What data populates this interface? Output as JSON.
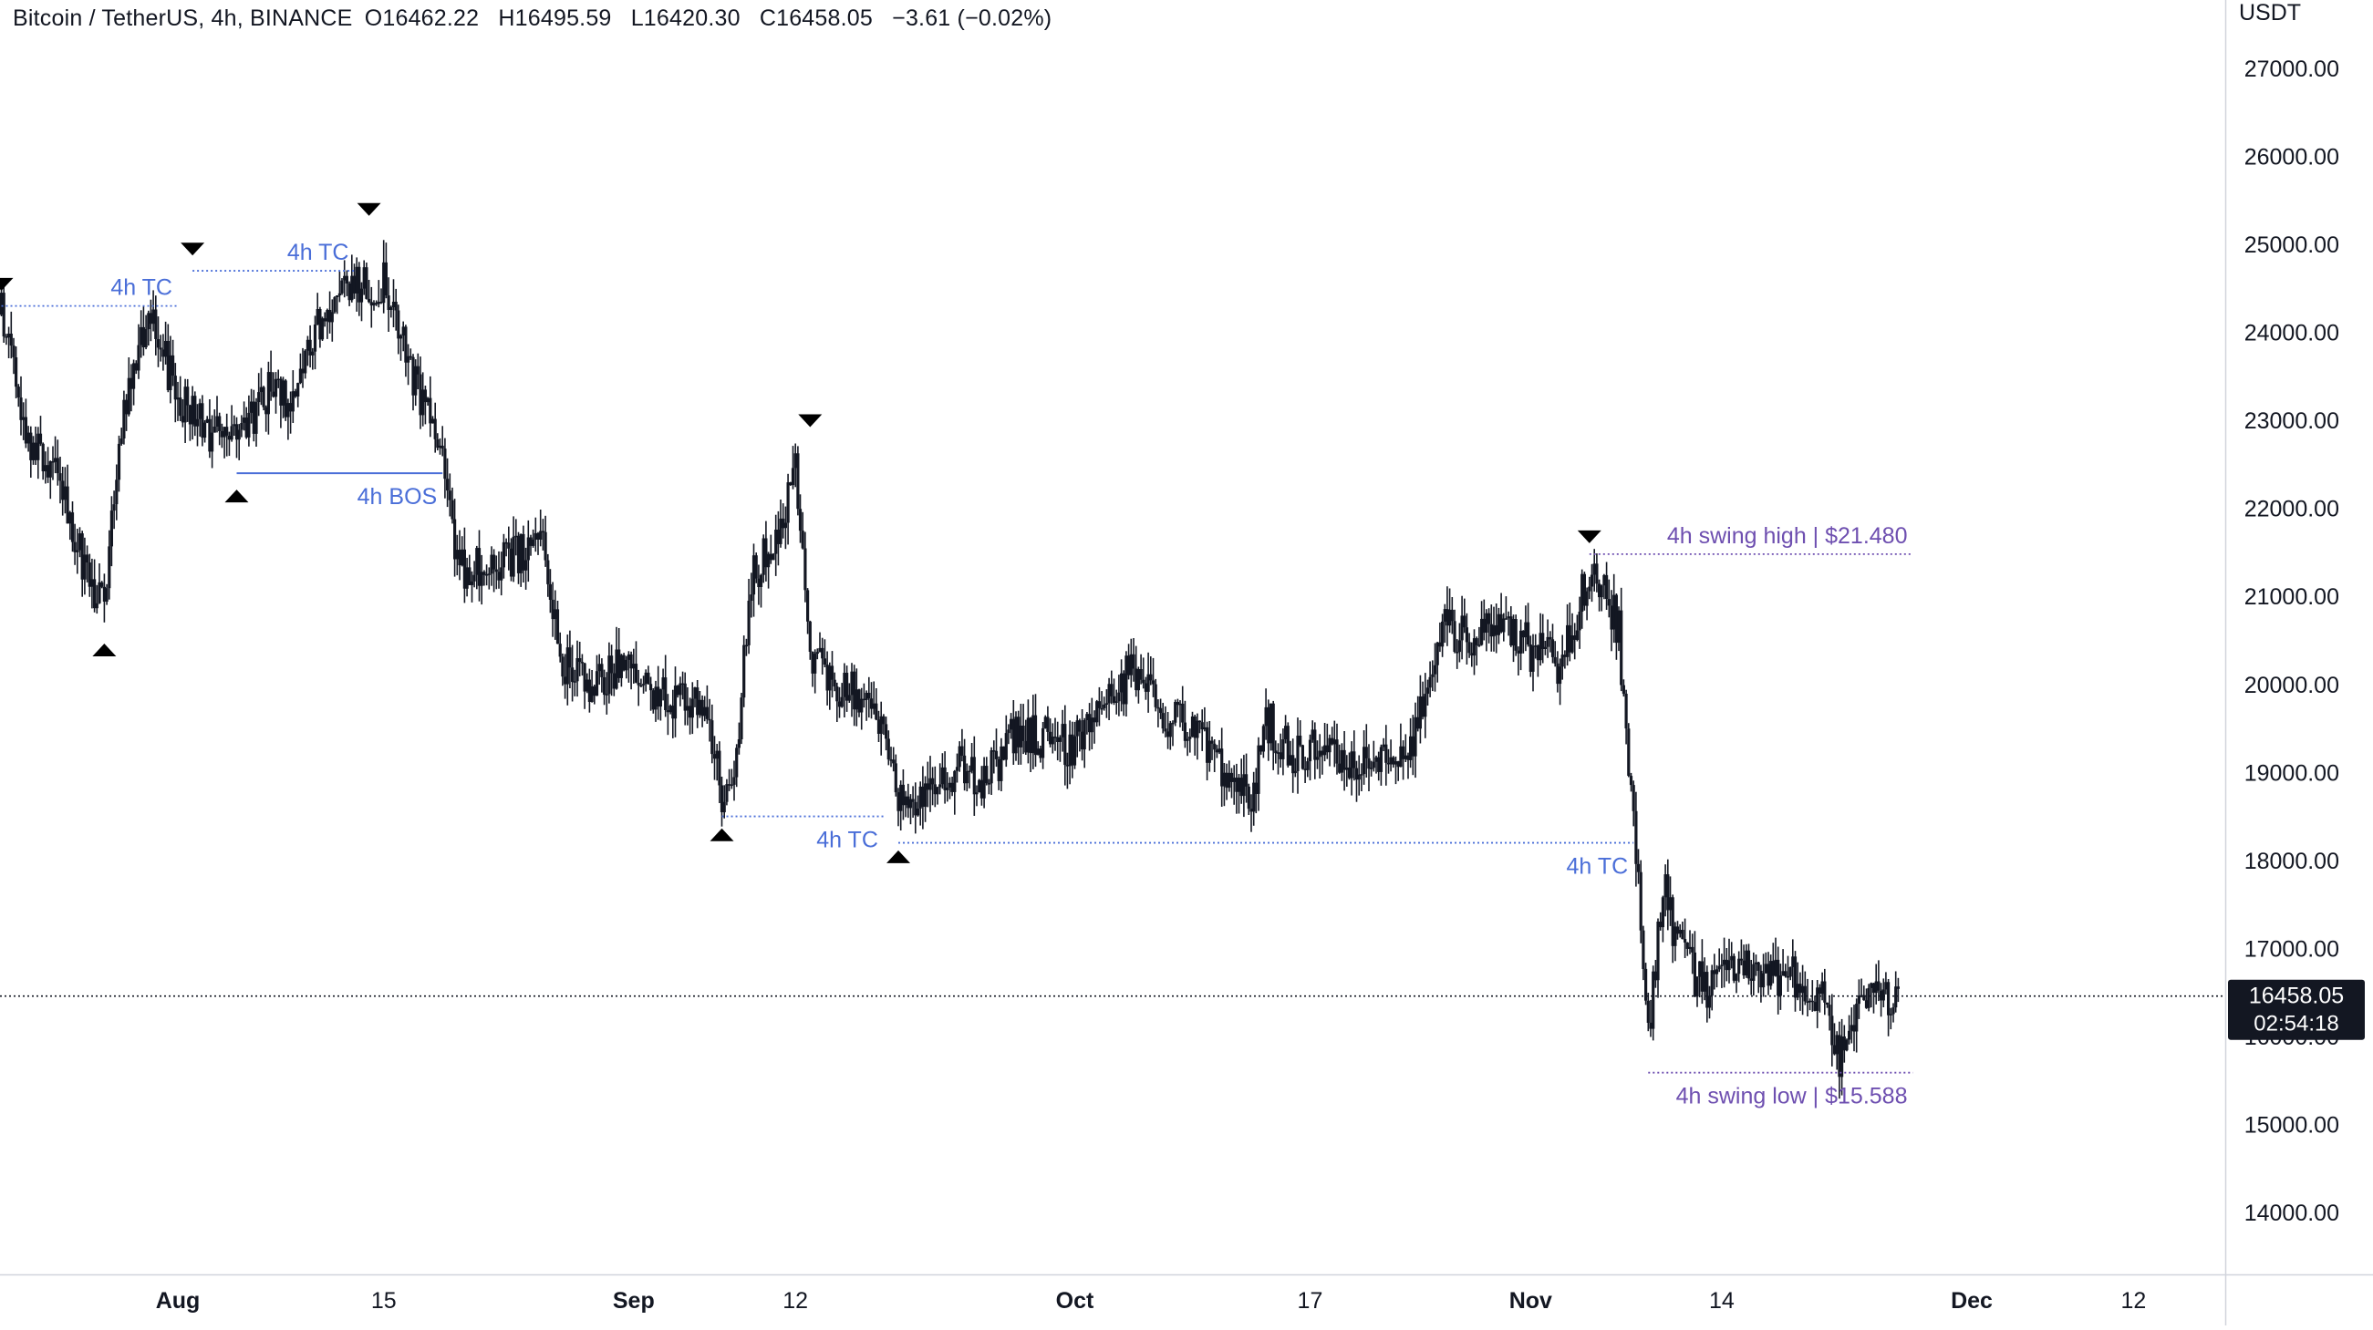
{
  "header": {
    "symbol": "Bitcoin / TetherUS, 4h, BINANCE",
    "open": "O16462.22",
    "high": "H16495.59",
    "low": "L16420.30",
    "close": "C16458.05",
    "change": "−3.61 (−0.02%)"
  },
  "price_scale": {
    "currency": "USDT",
    "last_price": "16458.05",
    "countdown": "02:54:18"
  },
  "colors": {
    "candle": "#131722",
    "marker": "#000000",
    "tc_label": "#4a6ed8",
    "swing_label": "#6e4fb0",
    "axis_text": "#131722",
    "price_tag_bg": "#131722",
    "price_tag_text": "#ffffff"
  },
  "chart_data": {
    "type": "candlestick",
    "title": "Bitcoin / TetherUS, 4h, BINANCE",
    "interval": "4h",
    "y_axis_labels": [
      "27000.00",
      "26000.00",
      "25000.00",
      "24000.00",
      "23000.00",
      "22000.00",
      "21000.00",
      "20000.00",
      "19000.00",
      "18000.00",
      "17000.00",
      "16000.00",
      "15000.00",
      "14000.00"
    ],
    "y_unit": "USDT",
    "x_tick_labels": [
      {
        "label": "Aug",
        "date": "2022-08-01"
      },
      {
        "label": "15",
        "date": "2022-08-15"
      },
      {
        "label": "Sep",
        "date": "2022-09-01"
      },
      {
        "label": "12",
        "date": "2022-09-12"
      },
      {
        "label": "Oct",
        "date": "2022-10-01"
      },
      {
        "label": "17",
        "date": "2022-10-17"
      },
      {
        "label": "Nov",
        "date": "2022-11-01"
      },
      {
        "label": "14",
        "date": "2022-11-14"
      },
      {
        "label": "Dec",
        "date": "2022-12-01"
      },
      {
        "label": "12",
        "date": "2022-12-12"
      }
    ],
    "close_path": [
      {
        "date": "2022-07-20",
        "price": 24200
      },
      {
        "date": "2022-07-22",
        "price": 22700
      },
      {
        "date": "2022-07-24",
        "price": 22400
      },
      {
        "date": "2022-07-26",
        "price": 21100
      },
      {
        "date": "2022-07-27",
        "price": 20800
      },
      {
        "date": "2022-07-28",
        "price": 22800
      },
      {
        "date": "2022-07-30",
        "price": 24200
      },
      {
        "date": "2022-08-01",
        "price": 23300
      },
      {
        "date": "2022-08-03",
        "price": 22900
      },
      {
        "date": "2022-08-05",
        "price": 22700
      },
      {
        "date": "2022-08-07",
        "price": 23300
      },
      {
        "date": "2022-08-09",
        "price": 23200
      },
      {
        "date": "2022-08-11",
        "price": 24300
      },
      {
        "date": "2022-08-13",
        "price": 24500
      },
      {
        "date": "2022-08-15",
        "price": 24600
      },
      {
        "date": "2022-08-17",
        "price": 23500
      },
      {
        "date": "2022-08-19",
        "price": 22700
      },
      {
        "date": "2022-08-20",
        "price": 21300
      },
      {
        "date": "2022-08-22",
        "price": 21300
      },
      {
        "date": "2022-08-24",
        "price": 21500
      },
      {
        "date": "2022-08-26",
        "price": 21600
      },
      {
        "date": "2022-08-27",
        "price": 20300
      },
      {
        "date": "2022-08-29",
        "price": 20000
      },
      {
        "date": "2022-08-31",
        "price": 20200
      },
      {
        "date": "2022-09-02",
        "price": 20000
      },
      {
        "date": "2022-09-04",
        "price": 19800
      },
      {
        "date": "2022-09-06",
        "price": 19800
      },
      {
        "date": "2022-09-07",
        "price": 18700
      },
      {
        "date": "2022-09-08",
        "price": 19200
      },
      {
        "date": "2022-09-09",
        "price": 21200
      },
      {
        "date": "2022-09-11",
        "price": 21700
      },
      {
        "date": "2022-09-12",
        "price": 22600
      },
      {
        "date": "2022-09-13",
        "price": 20300
      },
      {
        "date": "2022-09-15",
        "price": 19900
      },
      {
        "date": "2022-09-17",
        "price": 19900
      },
      {
        "date": "2022-09-19",
        "price": 18700
      },
      {
        "date": "2022-09-21",
        "price": 18700
      },
      {
        "date": "2022-09-23",
        "price": 19100
      },
      {
        "date": "2022-09-25",
        "price": 18900
      },
      {
        "date": "2022-09-27",
        "price": 19500
      },
      {
        "date": "2022-09-29",
        "price": 19400
      },
      {
        "date": "2022-10-01",
        "price": 19300
      },
      {
        "date": "2022-10-03",
        "price": 19700
      },
      {
        "date": "2022-10-05",
        "price": 20200
      },
      {
        "date": "2022-10-07",
        "price": 19700
      },
      {
        "date": "2022-10-09",
        "price": 19400
      },
      {
        "date": "2022-10-11",
        "price": 19100
      },
      {
        "date": "2022-10-13",
        "price": 18700
      },
      {
        "date": "2022-10-14",
        "price": 19600
      },
      {
        "date": "2022-10-16",
        "price": 19200
      },
      {
        "date": "2022-10-18",
        "price": 19400
      },
      {
        "date": "2022-10-20",
        "price": 19100
      },
      {
        "date": "2022-10-22",
        "price": 19200
      },
      {
        "date": "2022-10-24",
        "price": 19300
      },
      {
        "date": "2022-10-25",
        "price": 20000
      },
      {
        "date": "2022-10-26",
        "price": 20700
      },
      {
        "date": "2022-10-28",
        "price": 20500
      },
      {
        "date": "2022-10-30",
        "price": 20700
      },
      {
        "date": "2022-11-01",
        "price": 20400
      },
      {
        "date": "2022-11-03",
        "price": 20200
      },
      {
        "date": "2022-11-05",
        "price": 21300
      },
      {
        "date": "2022-11-06",
        "price": 21100
      },
      {
        "date": "2022-11-07",
        "price": 20600
      },
      {
        "date": "2022-11-08",
        "price": 18500
      },
      {
        "date": "2022-11-09",
        "price": 16000
      },
      {
        "date": "2022-11-10",
        "price": 17700
      },
      {
        "date": "2022-11-11",
        "price": 17000
      },
      {
        "date": "2022-11-13",
        "price": 16500
      },
      {
        "date": "2022-11-15",
        "price": 16900
      },
      {
        "date": "2022-11-17",
        "price": 16600
      },
      {
        "date": "2022-11-19",
        "price": 16700
      },
      {
        "date": "2022-11-21",
        "price": 16400
      },
      {
        "date": "2022-11-22",
        "price": 15700
      },
      {
        "date": "2022-11-23",
        "price": 16200
      },
      {
        "date": "2022-11-25",
        "price": 16500
      },
      {
        "date": "2022-11-26",
        "price": 16458
      }
    ],
    "swing_markers": [
      {
        "date": "2022-07-20",
        "price": 24350,
        "dir": "down"
      },
      {
        "date": "2022-07-27",
        "price": 20650,
        "dir": "up"
      },
      {
        "date": "2022-08-02",
        "price": 24750,
        "dir": "down"
      },
      {
        "date": "2022-08-05",
        "price": 22400,
        "dir": "up"
      },
      {
        "date": "2022-08-14",
        "price": 25200,
        "dir": "down"
      },
      {
        "date": "2022-09-07",
        "price": 18550,
        "dir": "up"
      },
      {
        "date": "2022-09-13",
        "price": 22800,
        "dir": "down"
      },
      {
        "date": "2022-09-19",
        "price": 18300,
        "dir": "up"
      },
      {
        "date": "2022-11-05",
        "price": 21480,
        "dir": "down"
      }
    ],
    "annotations": [
      {
        "label": "4h TC",
        "price": 24300,
        "from": "2022-07-20",
        "to": "2022-08-01",
        "style": "dotted",
        "label_pos": "above"
      },
      {
        "label": "4h TC",
        "price": 24700,
        "from": "2022-08-02",
        "to": "2022-08-13",
        "style": "dotted",
        "label_pos": "above"
      },
      {
        "label": "4h BOS",
        "price": 22400,
        "from": "2022-08-05",
        "to": "2022-08-19",
        "style": "solid",
        "label_pos": "below"
      },
      {
        "label": "4h TC",
        "price": 18500,
        "from": "2022-09-07",
        "to": "2022-09-18",
        "style": "dotted",
        "label_pos": "below"
      },
      {
        "label": "4h TC",
        "price": 18200,
        "from": "2022-09-19",
        "to": "2022-11-08",
        "style": "dotted",
        "label_pos": "below"
      },
      {
        "label": "4h swing high | $21.480",
        "price": 21480,
        "from": "2022-11-05",
        "to": "2022-11-27",
        "style": "dotted",
        "label_pos": "above"
      },
      {
        "label": "4h swing low | $15.588",
        "price": 15588,
        "from": "2022-11-09",
        "to": "2022-11-27",
        "style": "dotted",
        "label_pos": "below"
      }
    ],
    "last_price": 16458.05
  }
}
